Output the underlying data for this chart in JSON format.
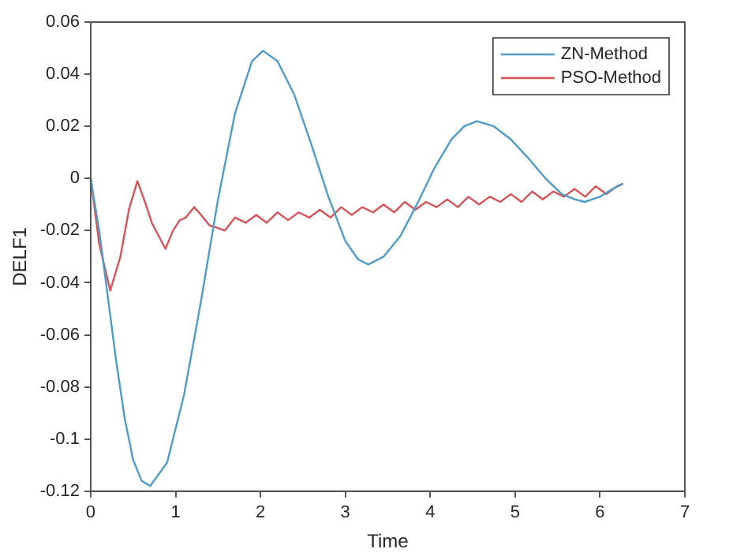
{
  "chart_data": {
    "type": "line",
    "xlabel": "Time",
    "ylabel": "DELF1",
    "xlim": [
      0,
      7
    ],
    "xticks": [
      0,
      1,
      2,
      3,
      4,
      5,
      6,
      7
    ],
    "ylim": [
      -0.12,
      0.06
    ],
    "yticks": [
      -0.12,
      -0.1,
      -0.08,
      -0.06,
      -0.04,
      -0.02,
      0,
      0.02,
      0.04,
      0.06
    ],
    "grid": false,
    "legend": "top right",
    "marker": "none",
    "line_style": "solid",
    "series": [
      {
        "name": "ZN-Method",
        "color": "#4f9cc9",
        "x": [
          0,
          0.1,
          0.2,
          0.3,
          0.4,
          0.5,
          0.6,
          0.7,
          0.9,
          1.1,
          1.3,
          1.5,
          1.7,
          1.9,
          2.03,
          2.2,
          2.4,
          2.6,
          2.8,
          3.0,
          3.15,
          3.27,
          3.45,
          3.65,
          3.85,
          4.05,
          4.25,
          4.4,
          4.55,
          4.75,
          4.95,
          5.15,
          5.35,
          5.55,
          5.7,
          5.82,
          6.0,
          6.15,
          6.27
        ],
        "values": [
          0,
          -0.02,
          -0.045,
          -0.07,
          -0.092,
          -0.108,
          -0.116,
          -0.118,
          -0.109,
          -0.083,
          -0.047,
          -0.008,
          0.025,
          0.045,
          0.049,
          0.045,
          0.032,
          0.013,
          -0.007,
          -0.024,
          -0.031,
          -0.033,
          -0.03,
          -0.022,
          -0.0095,
          0.004,
          0.015,
          0.02,
          0.022,
          0.02,
          0.015,
          0.008,
          0.0003,
          -0.006,
          -0.008,
          -0.009,
          -0.007,
          -0.004,
          -0.002
        ]
      },
      {
        "name": "PSO-Method",
        "color": "#d9545a",
        "x": [
          0,
          0.1,
          0.23,
          0.35,
          0.45,
          0.55,
          0.65,
          0.72,
          0.8,
          0.88,
          0.97,
          1.05,
          1.12,
          1.22,
          1.3,
          1.4,
          1.5,
          1.58,
          1.7,
          1.825,
          1.95,
          2.075,
          2.2,
          2.325,
          2.45,
          2.575,
          2.7,
          2.825,
          2.95,
          3.075,
          3.2,
          3.325,
          3.45,
          3.575,
          3.7,
          3.825,
          3.95,
          4.075,
          4.2,
          4.325,
          4.45,
          4.575,
          4.7,
          4.825,
          4.95,
          5.075,
          5.2,
          5.325,
          5.45,
          5.575,
          5.7,
          5.825,
          5.95,
          6.075,
          6.2,
          6.27
        ],
        "values": [
          0,
          -0.025,
          -0.043,
          -0.03,
          -0.012,
          -0.001,
          -0.01,
          -0.017,
          -0.022,
          -0.027,
          -0.02,
          -0.016,
          -0.015,
          -0.011,
          -0.014,
          -0.018,
          -0.019,
          -0.02,
          -0.015,
          -0.017,
          -0.014,
          -0.017,
          -0.013,
          -0.016,
          -0.013,
          -0.015,
          -0.012,
          -0.015,
          -0.011,
          -0.014,
          -0.011,
          -0.013,
          -0.01,
          -0.013,
          -0.009,
          -0.012,
          -0.009,
          -0.011,
          -0.008,
          -0.011,
          -0.007,
          -0.01,
          -0.007,
          -0.009,
          -0.006,
          -0.009,
          -0.005,
          -0.008,
          -0.005,
          -0.007,
          -0.004,
          -0.007,
          -0.003,
          -0.006,
          -0.003,
          -0.002
        ]
      }
    ]
  }
}
